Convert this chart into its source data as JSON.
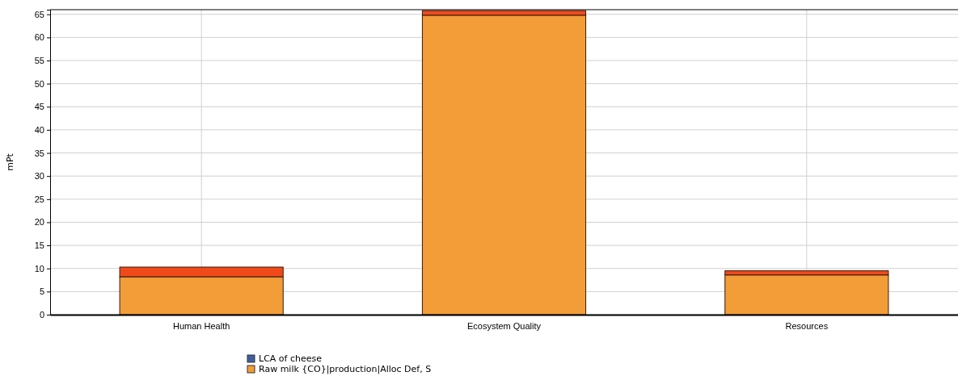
{
  "chart_data": {
    "type": "bar",
    "stacked": true,
    "ylabel": "mPt",
    "categories": [
      "Human Health",
      "Ecosystem Quality",
      "Resources"
    ],
    "series": [
      {
        "name": "LCA of cheese",
        "color": "#3f5f9f",
        "values": [
          null,
          null,
          null
        ]
      },
      {
        "name": "Raw milk {CO}|production|Alloc Def, S",
        "color": "#f29d38",
        "values": [
          8.2,
          64.8,
          8.6
        ]
      },
      {
        "color": "#f04a1a",
        "values": [
          2.1,
          1.0,
          0.9
        ]
      }
    ],
    "ylim": [
      0,
      66
    ],
    "yticks": [
      0,
      5,
      10,
      15,
      20,
      25,
      30,
      35,
      40,
      45,
      50,
      55,
      60,
      65
    ],
    "grid": true,
    "legend": "bottom"
  }
}
